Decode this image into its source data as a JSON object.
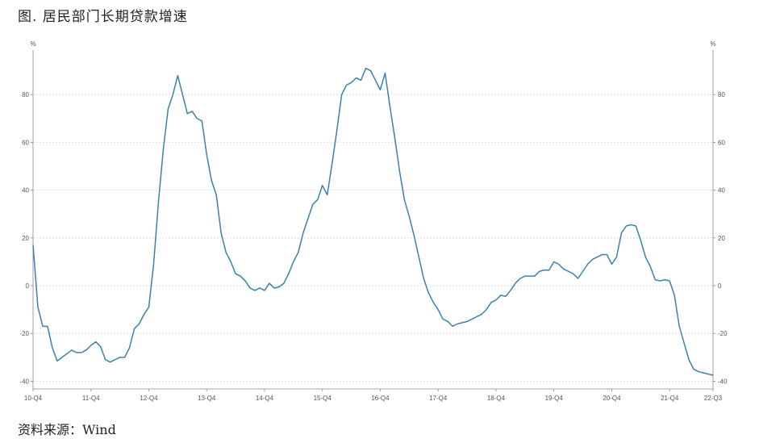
{
  "title": "图. 居民部门长期贷款增速",
  "source": "资料来源：Wind",
  "chart_data": {
    "type": "line",
    "title": "图. 居民部门长期贷款增速",
    "xlabel": "",
    "ylabel": "%",
    "y2label": "%",
    "ylim": [
      -42,
      95
    ],
    "yticks": [
      -40,
      -20,
      0,
      20,
      40,
      60,
      80
    ],
    "grid": true,
    "line_color": "#3a82ad",
    "categories": [
      "10-Q4",
      "11-Q4",
      "12-Q4",
      "13-Q4",
      "14-Q4",
      "15-Q4",
      "16-Q4",
      "17-Q4",
      "18-Q4",
      "19-Q4",
      "20-Q4",
      "21-Q4",
      "22-Q3"
    ],
    "series": [
      {
        "x": [
          0,
          1,
          2,
          3,
          4,
          5,
          6,
          7,
          8,
          9,
          10,
          11,
          12,
          13,
          14,
          15,
          16,
          17,
          18,
          19,
          20,
          21,
          22,
          23,
          24,
          25,
          26,
          27,
          28,
          29,
          30,
          31,
          32,
          33,
          34,
          35,
          36,
          37,
          38,
          39,
          40,
          41,
          42,
          43,
          44,
          45,
          46,
          47,
          48,
          49,
          50,
          51,
          52,
          53,
          54,
          55,
          56,
          57,
          58,
          59,
          60,
          61,
          62,
          63,
          64,
          65,
          66,
          67,
          68,
          69,
          70,
          71,
          72,
          73,
          74,
          75,
          76,
          77,
          78,
          79,
          80,
          81,
          82,
          83,
          84,
          85,
          86,
          87,
          88,
          89,
          90,
          91,
          92,
          93,
          94,
          95,
          96,
          97,
          98,
          99,
          100,
          101,
          102,
          103,
          104,
          105,
          106,
          107,
          108,
          109,
          110,
          111,
          112,
          113,
          114,
          115,
          116,
          117,
          118,
          119,
          120,
          121,
          122,
          123,
          124,
          125,
          126,
          127,
          128,
          129,
          130,
          131,
          132,
          133,
          134,
          135,
          136,
          137,
          138,
          139,
          140,
          141
        ],
        "values": [
          17,
          -9,
          -17,
          -17,
          -26,
          -31.5,
          -30,
          -28.5,
          -27,
          -28,
          -28,
          -27,
          -25,
          -23.5,
          -25.5,
          -31,
          -32,
          -31,
          -30,
          -30,
          -26,
          -18,
          -16,
          -12,
          -9,
          9,
          35,
          57,
          74,
          80,
          88,
          80,
          72,
          73,
          70,
          69,
          55,
          44,
          38,
          22,
          14,
          10,
          5,
          4,
          2,
          -1,
          -2,
          -1,
          -2,
          1,
          -1,
          -0.5,
          1,
          5,
          10,
          14,
          22,
          28,
          34,
          36,
          42,
          38,
          51,
          65,
          80,
          84,
          85,
          87,
          86,
          91,
          90,
          86,
          82,
          89,
          75,
          62,
          48,
          36,
          29,
          21,
          12,
          3,
          -3,
          -7,
          -10,
          -14,
          -15,
          -17,
          -16,
          -15.5,
          -15,
          -14,
          -13,
          -12,
          -10,
          -7,
          -6,
          -4,
          -4.5,
          -2,
          1,
          3,
          4,
          4,
          4,
          6,
          6.5,
          6.5,
          10,
          9,
          7,
          6,
          5,
          3,
          6,
          9,
          11,
          12,
          13,
          13,
          9,
          12,
          22,
          25,
          25.5,
          25,
          19,
          12,
          8,
          2.5,
          2,
          2.5,
          2,
          -4,
          -17,
          -24,
          -31,
          -35,
          -36,
          -36.5,
          -37,
          -37.5
        ]
      }
    ]
  }
}
